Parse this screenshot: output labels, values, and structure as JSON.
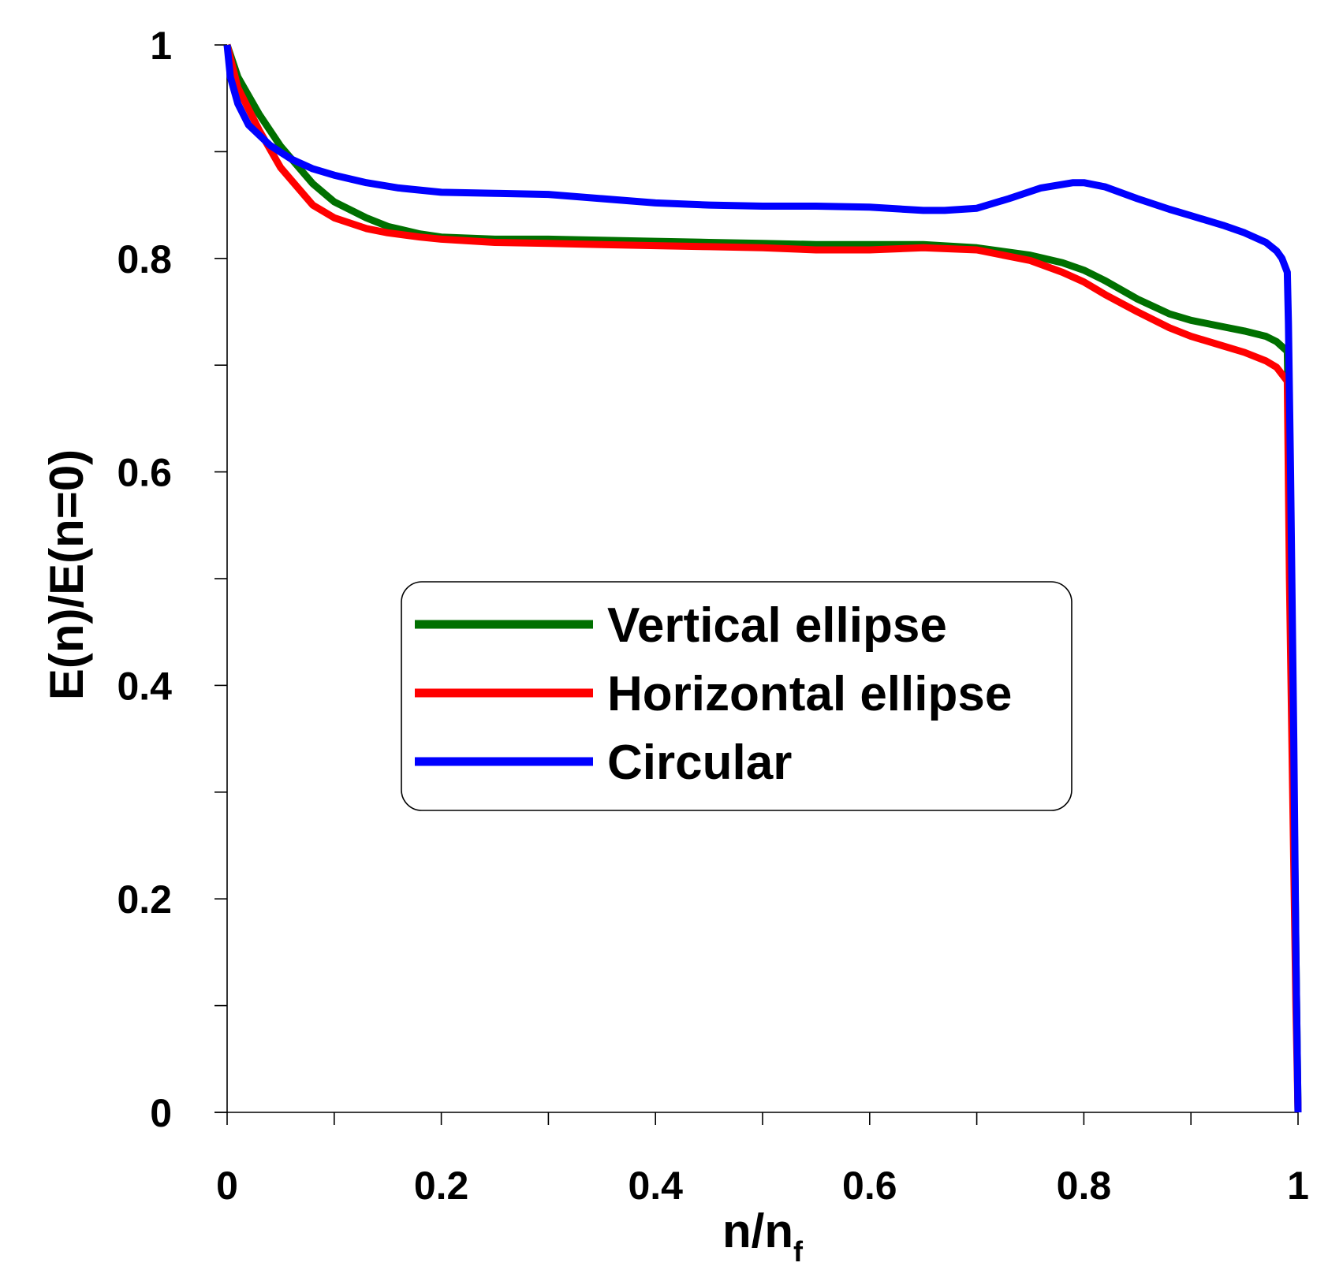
{
  "chart_data": {
    "type": "line",
    "title": "",
    "xlabel": "n/n",
    "xlabel_subscript": "f",
    "ylabel": "E(n)/E(n=0)",
    "xlim": [
      0,
      1
    ],
    "ylim": [
      0,
      1
    ],
    "x_ticks": [
      0,
      0.2,
      0.4,
      0.6,
      0.8,
      1
    ],
    "x_tick_labels": [
      "0",
      "0.2",
      "0.4",
      "0.6",
      "0.8",
      "1"
    ],
    "y_ticks": [
      0,
      0.2,
      0.4,
      0.6,
      0.8,
      1
    ],
    "y_tick_labels": [
      "0",
      "0.2",
      "0.4",
      "0.6",
      "0.8",
      "1"
    ],
    "x_minor_step": 0.1,
    "y_minor_step": 0.1,
    "grid": false,
    "legend_position": "center-right",
    "series": [
      {
        "name": "Vertical ellipse",
        "color": "#007000",
        "x": [
          0,
          0.01,
          0.03,
          0.05,
          0.08,
          0.1,
          0.13,
          0.15,
          0.18,
          0.2,
          0.25,
          0.3,
          0.35,
          0.4,
          0.45,
          0.5,
          0.55,
          0.6,
          0.65,
          0.7,
          0.75,
          0.78,
          0.8,
          0.82,
          0.85,
          0.88,
          0.9,
          0.93,
          0.95,
          0.97,
          0.98,
          0.99,
          0.992,
          0.995,
          0.998,
          1.0
        ],
        "y": [
          1.0,
          0.97,
          0.935,
          0.905,
          0.87,
          0.853,
          0.838,
          0.83,
          0.823,
          0.82,
          0.818,
          0.818,
          0.817,
          0.816,
          0.815,
          0.814,
          0.813,
          0.813,
          0.813,
          0.81,
          0.803,
          0.796,
          0.789,
          0.779,
          0.762,
          0.748,
          0.742,
          0.736,
          0.732,
          0.727,
          0.722,
          0.713,
          0.6,
          0.4,
          0.15,
          0.0
        ]
      },
      {
        "name": "Horizontal ellipse",
        "color": "#ff0000",
        "x": [
          0,
          0.01,
          0.03,
          0.05,
          0.08,
          0.1,
          0.13,
          0.15,
          0.18,
          0.2,
          0.25,
          0.3,
          0.35,
          0.4,
          0.45,
          0.5,
          0.55,
          0.6,
          0.65,
          0.7,
          0.75,
          0.78,
          0.8,
          0.82,
          0.85,
          0.88,
          0.9,
          0.93,
          0.95,
          0.97,
          0.98,
          0.99,
          0.992,
          0.995,
          0.998,
          1.0
        ],
        "y": [
          1.0,
          0.96,
          0.92,
          0.885,
          0.85,
          0.838,
          0.828,
          0.824,
          0.82,
          0.818,
          0.815,
          0.814,
          0.813,
          0.812,
          0.811,
          0.81,
          0.808,
          0.808,
          0.81,
          0.808,
          0.798,
          0.787,
          0.778,
          0.766,
          0.75,
          0.735,
          0.727,
          0.718,
          0.712,
          0.704,
          0.698,
          0.685,
          0.5,
          0.3,
          0.1,
          0.0
        ]
      },
      {
        "name": "Circular",
        "color": "#0000ff",
        "x": [
          0,
          0.003,
          0.01,
          0.02,
          0.04,
          0.06,
          0.08,
          0.1,
          0.13,
          0.16,
          0.2,
          0.25,
          0.3,
          0.35,
          0.4,
          0.45,
          0.5,
          0.55,
          0.6,
          0.65,
          0.67,
          0.7,
          0.73,
          0.76,
          0.79,
          0.8,
          0.82,
          0.85,
          0.88,
          0.9,
          0.93,
          0.95,
          0.97,
          0.98,
          0.985,
          0.99,
          0.991,
          0.993,
          0.996,
          0.998,
          1.0
        ],
        "y": [
          1.0,
          0.97,
          0.945,
          0.925,
          0.906,
          0.893,
          0.884,
          0.878,
          0.871,
          0.866,
          0.862,
          0.861,
          0.86,
          0.856,
          0.852,
          0.85,
          0.849,
          0.849,
          0.848,
          0.845,
          0.845,
          0.847,
          0.856,
          0.866,
          0.871,
          0.871,
          0.867,
          0.856,
          0.846,
          0.84,
          0.831,
          0.824,
          0.815,
          0.807,
          0.8,
          0.787,
          0.74,
          0.6,
          0.35,
          0.15,
          0.0
        ]
      }
    ]
  }
}
